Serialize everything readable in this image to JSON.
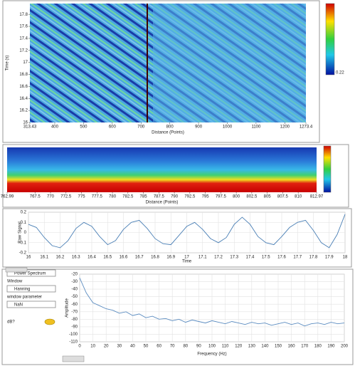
{
  "chart_data": [
    {
      "type": "heatmap",
      "xlabel": "Distance (Points)",
      "ylabel": "Time (s)",
      "xlim": [
        313.43,
        1273.4
      ],
      "xticks": [
        313.43,
        400,
        500,
        600,
        700,
        800,
        900,
        1000,
        1100,
        1200,
        1273.4
      ],
      "ylim": [
        16,
        17.98
      ],
      "yticks": [
        16,
        16.2,
        16.4,
        16.6,
        16.8,
        17,
        17.2,
        17.4,
        17.6,
        17.8
      ],
      "colorbar_min": 0.22,
      "grid": false
    },
    {
      "type": "heatmap",
      "xlabel": "Distance (Points)",
      "xlim": [
        762.99,
        812.97
      ],
      "xticks": [
        762.99,
        767.5,
        770,
        772.5,
        775,
        777.5,
        780,
        782.5,
        785,
        787.5,
        790,
        792.5,
        795,
        797.5,
        800,
        802.5,
        805,
        807.5,
        810,
        812.97
      ],
      "grid": false
    },
    {
      "type": "line",
      "xlabel": "Time",
      "ylabel": "Raw Signal",
      "color": "#4a7fb5",
      "xlim": [
        16,
        18
      ],
      "xticks": [
        16,
        16.1,
        16.2,
        16.3,
        16.4,
        16.5,
        16.6,
        16.7,
        16.8,
        16.9,
        17,
        17.1,
        17.2,
        17.3,
        17.4,
        17.5,
        17.6,
        17.7,
        17.8,
        17.9,
        18
      ],
      "ylim": [
        -0.2,
        0.2
      ],
      "yticks": [
        -0.2,
        -0.1,
        0,
        0.1,
        0.2
      ],
      "grid": true,
      "x": [
        16,
        16.05,
        16.1,
        16.15,
        16.2,
        16.25,
        16.3,
        16.35,
        16.4,
        16.45,
        16.5,
        16.55,
        16.6,
        16.65,
        16.7,
        16.75,
        16.8,
        16.85,
        16.9,
        16.95,
        17,
        17.05,
        17.1,
        17.15,
        17.2,
        17.25,
        17.3,
        17.35,
        17.4,
        17.45,
        17.5,
        17.55,
        17.6,
        17.65,
        17.7,
        17.75,
        17.8,
        17.85,
        17.9,
        17.95,
        18
      ],
      "values": [
        0.08,
        0.05,
        -0.05,
        -0.13,
        -0.15,
        -0.08,
        0.04,
        0.1,
        0.06,
        -0.04,
        -0.12,
        -0.08,
        0.03,
        0.1,
        0.12,
        0.04,
        -0.06,
        -0.11,
        -0.12,
        -0.03,
        0.06,
        0.1,
        0.03,
        -0.06,
        -0.1,
        -0.05,
        0.08,
        0.15,
        0.08,
        -0.04,
        -0.1,
        -0.12,
        -0.04,
        0.05,
        0.1,
        0.12,
        0.02,
        -0.1,
        -0.15,
        -0.02,
        0.18
      ]
    },
    {
      "type": "line",
      "xlabel": "Frequency (Hz)",
      "ylabel": "Amplitude",
      "color": "#5b8cc0",
      "xlim": [
        0,
        200
      ],
      "xticks": [
        0,
        10,
        20,
        30,
        40,
        50,
        60,
        70,
        80,
        90,
        100,
        110,
        120,
        130,
        140,
        150,
        160,
        170,
        180,
        190,
        200
      ],
      "ylim": [
        -110,
        -20
      ],
      "yticks": [
        -110,
        -100,
        -90,
        -80,
        -70,
        -60,
        -50,
        -40,
        -30,
        -20
      ],
      "grid": true,
      "x": [
        0,
        5,
        10,
        15,
        20,
        25,
        30,
        35,
        40,
        45,
        50,
        55,
        60,
        65,
        70,
        75,
        80,
        85,
        90,
        95,
        100,
        105,
        110,
        115,
        120,
        125,
        130,
        135,
        140,
        145,
        150,
        155,
        160,
        165,
        170,
        175,
        180,
        185,
        190,
        195,
        200
      ],
      "values": [
        -25,
        -45,
        -58,
        -62,
        -66,
        -68,
        -72,
        -70,
        -75,
        -73,
        -78,
        -76,
        -80,
        -79,
        -82,
        -80,
        -84,
        -81,
        -83,
        -85,
        -82,
        -84,
        -86,
        -83,
        -85,
        -87,
        -84,
        -86,
        -85,
        -88,
        -86,
        -84,
        -87,
        -85,
        -89,
        -86,
        -85,
        -87,
        -84,
        -86,
        -85
      ]
    }
  ],
  "controls": {
    "mode": "Power Spectrum",
    "window_label": "Window",
    "window": "Hanning",
    "param_label": "window parameter",
    "param": "NaN",
    "db_label": "dB?"
  }
}
